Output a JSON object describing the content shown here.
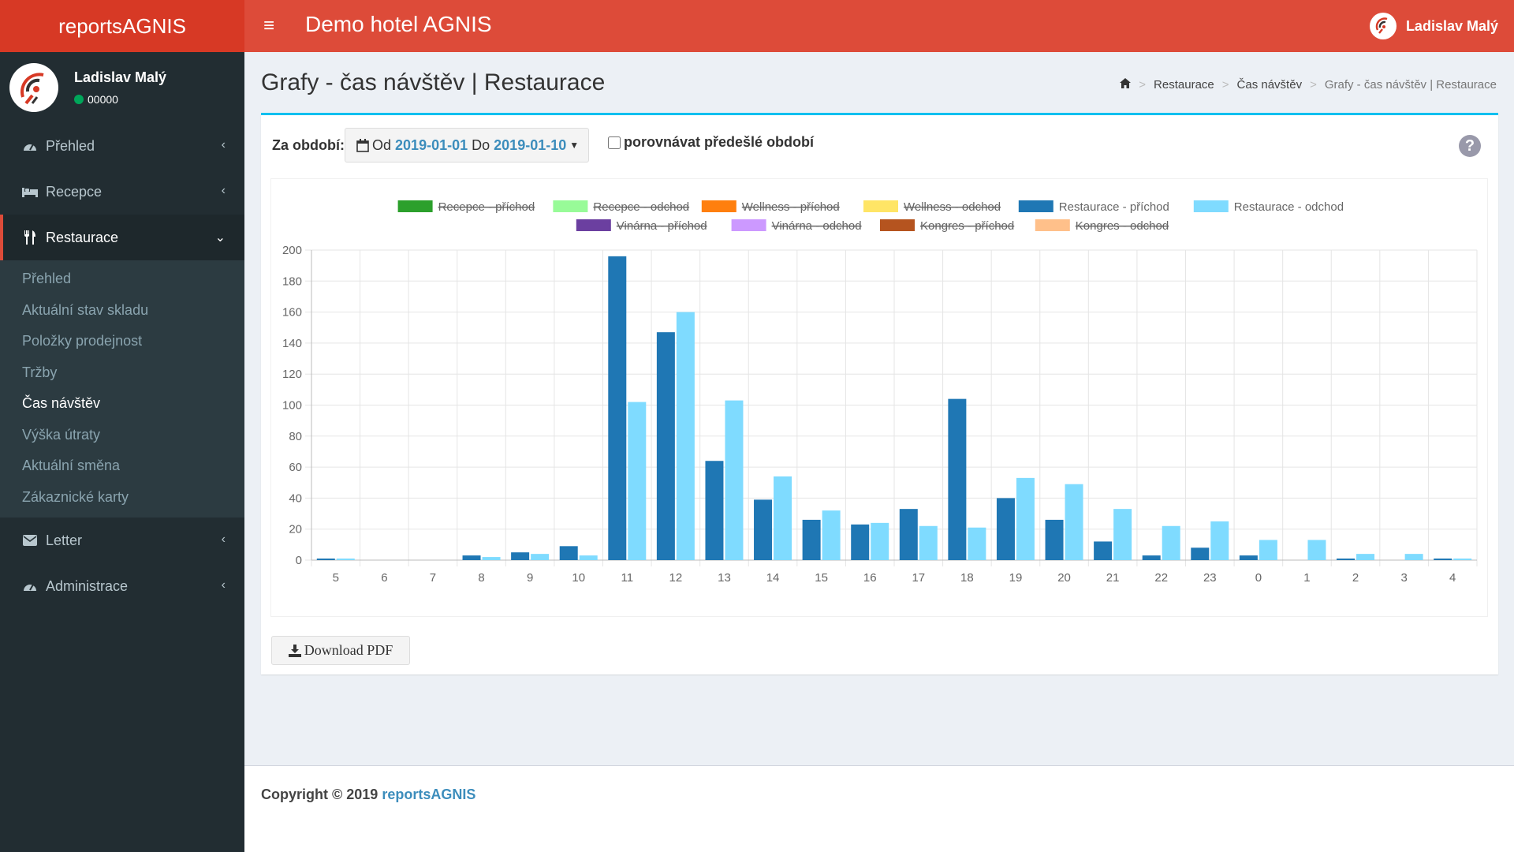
{
  "header": {
    "brand": "reportsAGNIS",
    "hotel": "Demo hotel AGNIS",
    "user": "Ladislav Malý"
  },
  "sidebar": {
    "user_name": "Ladislav Malý",
    "user_code": "00000",
    "items": [
      {
        "label": "Přehled",
        "icon": "dashboard-icon"
      },
      {
        "label": "Recepce",
        "icon": "bed-icon"
      },
      {
        "label": "Restaurace",
        "icon": "cutlery-icon"
      },
      {
        "label": "Letter",
        "icon": "envelope-icon"
      },
      {
        "label": "Administrace",
        "icon": "dashboard-icon"
      }
    ],
    "submenu": [
      "Přehled",
      "Aktuální stav skladu",
      "Položky prodejnost",
      "Tržby",
      "Čas návštěv",
      "Výška útraty",
      "Aktuální směna",
      "Zákaznické karty"
    ]
  },
  "page": {
    "title": "Grafy - čas návštěv | Restaurace",
    "breadcrumb": [
      "Restaurace",
      "Čas návštěv",
      "Grafy - čas návštěv | Restaurace"
    ]
  },
  "filter": {
    "label": "Za období:",
    "from_prefix": "Od",
    "from": "2019-01-01",
    "to_prefix": "Do",
    "to": "2019-01-10",
    "compare_label": "porovnávat předešlé období"
  },
  "chart_data": {
    "type": "bar",
    "categories": [
      "5",
      "6",
      "7",
      "8",
      "9",
      "10",
      "11",
      "12",
      "13",
      "14",
      "15",
      "16",
      "17",
      "18",
      "19",
      "20",
      "21",
      "22",
      "23",
      "0",
      "1",
      "2",
      "3",
      "4"
    ],
    "ylim": [
      0,
      200
    ],
    "yticks": [
      0,
      20,
      40,
      60,
      80,
      100,
      120,
      140,
      160,
      180,
      200
    ],
    "grid": true,
    "legend_position": "top",
    "legend": [
      {
        "name": "Recepce - příchod",
        "color": "#2ca02c",
        "hidden": true
      },
      {
        "name": "Recepce - odchod",
        "color": "#98fb98",
        "hidden": true
      },
      {
        "name": "Wellness - příchod",
        "color": "#ff7f0e",
        "hidden": true
      },
      {
        "name": "Wellness - odchod",
        "color": "#ffe566",
        "hidden": true
      },
      {
        "name": "Restaurace - příchod",
        "color": "#1f77b4",
        "hidden": false
      },
      {
        "name": "Restaurace - odchod",
        "color": "#7fdbff",
        "hidden": false
      },
      {
        "name": "Vinárna - příchod",
        "color": "#6b3fa0",
        "hidden": true
      },
      {
        "name": "Vinárna - odchod",
        "color": "#cc99ff",
        "hidden": true
      },
      {
        "name": "Kongres - příchod",
        "color": "#b5541f",
        "hidden": true
      },
      {
        "name": "Kongres - odchod",
        "color": "#ffc08a",
        "hidden": true
      }
    ],
    "series": [
      {
        "name": "Restaurace - příchod",
        "color": "#1f77b4",
        "values": [
          1,
          0,
          0,
          3,
          5,
          9,
          196,
          147,
          64,
          39,
          26,
          23,
          33,
          104,
          40,
          26,
          12,
          3,
          8,
          3,
          0,
          1,
          0,
          1
        ]
      },
      {
        "name": "Restaurace - odchod",
        "color": "#7fdbff",
        "values": [
          1,
          0,
          0,
          2,
          4,
          3,
          102,
          160,
          103,
          54,
          32,
          24,
          22,
          21,
          53,
          49,
          33,
          22,
          25,
          13,
          13,
          4,
          4,
          1
        ]
      }
    ]
  },
  "actions": {
    "download_pdf": "Download PDF"
  },
  "footer": {
    "copyright": "Copyright © 2019",
    "link": "reportsAGNIS"
  }
}
